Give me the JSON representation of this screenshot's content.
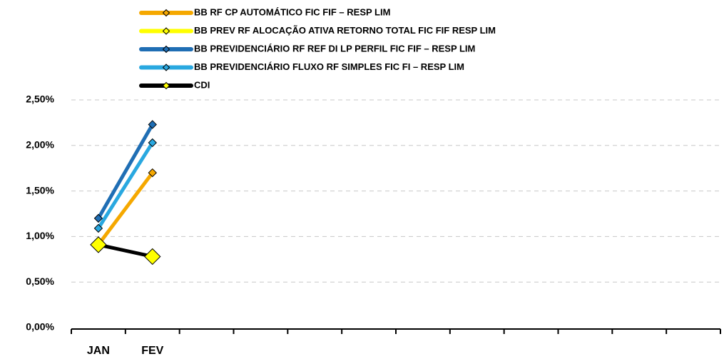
{
  "chart_data": {
    "type": "line",
    "categories": [
      "JAN",
      "FEV",
      null,
      null,
      null,
      null,
      null,
      null,
      null,
      null,
      null,
      null
    ],
    "series": [
      {
        "name": "BB RF CP AUTOMÁTICO FIC FIF – RESP LIM",
        "color": "#f5a800",
        "marker_color": "#f5a800",
        "values": [
          0.91,
          1.7,
          null,
          null,
          null,
          null,
          null,
          null,
          null,
          null,
          null,
          null
        ]
      },
      {
        "name": "BB PREV RF ALOCAÇÃO ATIVA RETORNO TOTAL FIC FIF RESP LIM",
        "color": "#ffff00",
        "marker_color": "#ffff00",
        "values": [
          null,
          null,
          null,
          null,
          null,
          null,
          null,
          null,
          null,
          null,
          null,
          null
        ]
      },
      {
        "name": "BB PREVIDENCIÁRIO RF REF DI LP PERFIL FIC FIF – RESP LIM",
        "color": "#1f6eb4",
        "marker_color": "#1f6eb4",
        "values": [
          1.2,
          2.23,
          null,
          null,
          null,
          null,
          null,
          null,
          null,
          null,
          null,
          null
        ]
      },
      {
        "name": "BB PREVIDENCIÁRIO FLUXO RF SIMPLES FIC FI – RESP LIM",
        "color": "#29a8e0",
        "marker_color": "#29a8e0",
        "values": [
          1.09,
          2.03,
          null,
          null,
          null,
          null,
          null,
          null,
          null,
          null,
          null,
          null
        ]
      },
      {
        "name": "CDI",
        "color": "#000000",
        "marker_color": "#ffff00",
        "values": [
          0.91,
          0.78,
          null,
          null,
          null,
          null,
          null,
          null,
          null,
          null,
          null,
          null
        ]
      }
    ],
    "ylim": [
      0,
      2.5
    ],
    "yticks": [
      {
        "value": 0,
        "label": "0,00%"
      },
      {
        "value": 0.5,
        "label": "0,50%"
      },
      {
        "value": 1,
        "label": "1,00%"
      },
      {
        "value": 1.5,
        "label": "1,50%"
      },
      {
        "value": 2,
        "label": "2,00%"
      },
      {
        "value": 2.5,
        "label": "2,50%"
      }
    ],
    "grid": true,
    "legend": "top"
  }
}
